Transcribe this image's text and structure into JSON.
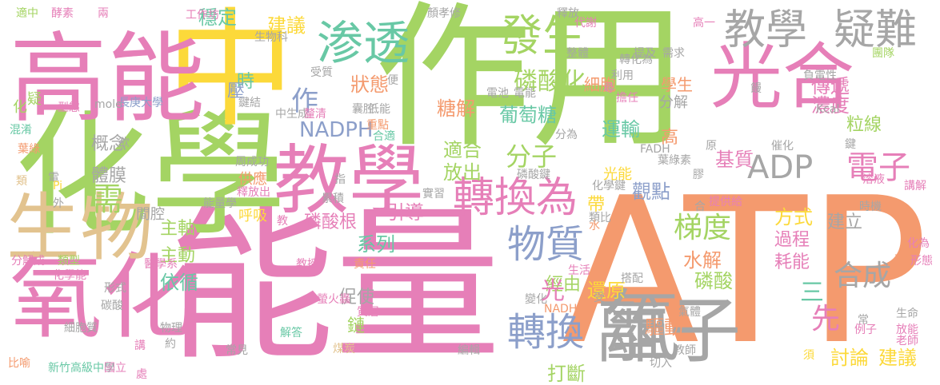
{
  "palette": {
    "pink": "#e67fb8",
    "green": "#a4d463",
    "gray": "#a6a6a6",
    "orange": "#f49a6e",
    "yellow": "#fcd93a",
    "teal": "#68c8a5",
    "blue": "#8c9fca",
    "tan": "#e2c38f"
  },
  "words": [
    {
      "text": "ATP",
      "color": "orange"
    },
    {
      "text": "能量",
      "color": "pink"
    },
    {
      "text": "作用",
      "color": "green"
    },
    {
      "text": "化學",
      "color": "green"
    },
    {
      "text": "中",
      "color": "yellow"
    },
    {
      "text": "高能",
      "color": "pink"
    },
    {
      "text": "氧化",
      "color": "pink"
    },
    {
      "text": "教學",
      "color": "pink"
    },
    {
      "text": "生物",
      "color": "tan"
    },
    {
      "text": "光合",
      "color": "pink"
    },
    {
      "text": "離子",
      "color": "gray"
    },
    {
      "text": "氫",
      "color": "gray"
    },
    {
      "text": "渗透",
      "color": "teal"
    },
    {
      "text": "發生",
      "color": "green"
    },
    {
      "text": "教學",
      "color": "gray"
    },
    {
      "text": "疑難",
      "color": "gray"
    },
    {
      "text": "轉換為",
      "color": "pink"
    },
    {
      "text": "轉換",
      "color": "blue"
    },
    {
      "text": "物質",
      "color": "blue"
    },
    {
      "text": "ADP",
      "color": "gray"
    },
    {
      "text": "電子",
      "color": "pink"
    },
    {
      "text": "梯度",
      "color": "green"
    },
    {
      "text": "合成",
      "color": "gray"
    },
    {
      "text": "分子",
      "color": "green"
    },
    {
      "text": "NADPH",
      "color": "blue"
    },
    {
      "text": "作",
      "color": "blue"
    },
    {
      "text": "磷酸化",
      "color": "green"
    },
    {
      "text": "先",
      "color": "pink"
    },
    {
      "text": "建議",
      "color": "yellow"
    },
    {
      "text": "穩定",
      "color": "teal"
    },
    {
      "text": "細胞",
      "color": "orange"
    },
    {
      "text": "學生",
      "color": "orange"
    },
    {
      "text": "狀態",
      "color": "orange"
    },
    {
      "text": "糖解",
      "color": "orange"
    },
    {
      "text": "葡萄糖",
      "color": "teal"
    },
    {
      "text": "傳遞",
      "color": "pink"
    },
    {
      "text": "濃度",
      "color": "pink"
    },
    {
      "text": "粒線",
      "color": "green"
    },
    {
      "text": "運輸",
      "color": "teal"
    },
    {
      "text": "適合",
      "color": "green"
    },
    {
      "text": "放出",
      "color": "green"
    },
    {
      "text": "基質",
      "color": "pink"
    },
    {
      "text": "觀點",
      "color": "blue"
    },
    {
      "text": "方式",
      "color": "yellow"
    },
    {
      "text": "建立",
      "color": "gray"
    },
    {
      "text": "過程",
      "color": "pink"
    },
    {
      "text": "耗能",
      "color": "pink"
    },
    {
      "text": "水解",
      "color": "orange"
    },
    {
      "text": "磷酸",
      "color": "green"
    },
    {
      "text": "討論",
      "color": "yellow"
    },
    {
      "text": "建議",
      "color": "yellow"
    },
    {
      "text": "驅動",
      "color": "orange"
    },
    {
      "text": "打斷",
      "color": "green"
    },
    {
      "text": "還原",
      "color": "yellow"
    },
    {
      "text": "經由",
      "color": "green"
    },
    {
      "text": "系列",
      "color": "teal"
    },
    {
      "text": "依循",
      "color": "teal"
    },
    {
      "text": "促使",
      "color": "gray"
    },
    {
      "text": "磷酸根",
      "color": "pink"
    },
    {
      "text": "引導",
      "color": "pink"
    },
    {
      "text": "主軸",
      "color": "green"
    },
    {
      "text": "主動",
      "color": "green"
    },
    {
      "text": "概念",
      "color": "gray"
    },
    {
      "text": "體膜",
      "color": "gray"
    },
    {
      "text": "需",
      "color": "green"
    },
    {
      "text": "間腔",
      "color": "gray"
    },
    {
      "text": "供應",
      "color": "orange"
    },
    {
      "text": "呼吸",
      "color": "yellow"
    },
    {
      "text": "光能",
      "color": "yellow"
    },
    {
      "text": "帶",
      "color": "yellow"
    },
    {
      "text": "高",
      "color": "orange"
    },
    {
      "text": "分解",
      "color": "gray"
    },
    {
      "text": "長庚大學",
      "color": "blue"
    },
    {
      "text": "醫學系",
      "color": "pink"
    },
    {
      "text": "新竹高級中學",
      "color": "teal"
    },
    {
      "text": "國立",
      "color": "pink"
    },
    {
      "text": "常見",
      "color": "gray"
    },
    {
      "text": "解答",
      "color": "teal"
    },
    {
      "text": "教授",
      "color": "pink"
    },
    {
      "text": "責任",
      "color": "orange"
    },
    {
      "text": "實習",
      "color": "gray"
    },
    {
      "text": "鏈",
      "color": "green"
    },
    {
      "text": "時",
      "color": "teal"
    },
    {
      "text": "壓",
      "color": "blue"
    },
    {
      "text": "鍵結",
      "color": "gray"
    },
    {
      "text": "工作坊",
      "color": "pink"
    },
    {
      "text": "生物科",
      "color": "gray"
    },
    {
      "text": "顏孝修",
      "color": "gray"
    },
    {
      "text": "釋放",
      "color": "gray"
    },
    {
      "text": "酵素",
      "color": "pink"
    },
    {
      "text": "兩",
      "color": "pink"
    },
    {
      "text": "適中",
      "color": "green"
    },
    {
      "text": "代謝",
      "color": "pink"
    },
    {
      "text": "高一",
      "color": "pink"
    },
    {
      "text": "團隊",
      "color": "green"
    },
    {
      "text": "負電性",
      "color": "gray"
    },
    {
      "text": "Kcal",
      "color": "gray"
    },
    {
      "text": "mole",
      "color": "gray"
    },
    {
      "text": "型態",
      "color": "pink"
    },
    {
      "text": "疑",
      "color": "green"
    },
    {
      "text": "化",
      "color": "green"
    },
    {
      "text": "混淆",
      "color": "teal"
    },
    {
      "text": "葉綠",
      "color": "orange"
    },
    {
      "text": "類",
      "color": "tan"
    },
    {
      "text": "電",
      "color": "gray"
    },
    {
      "text": "Pi",
      "color": "yellow"
    },
    {
      "text": "外",
      "color": "gray"
    },
    {
      "text": "分解成",
      "color": "pink"
    },
    {
      "text": "類型",
      "color": "green"
    },
    {
      "text": "化學能",
      "color": "pink"
    },
    {
      "text": "形式",
      "color": "gray"
    },
    {
      "text": "碳酸",
      "color": "gray"
    },
    {
      "text": "細胞質",
      "color": "gray"
    },
    {
      "text": "講",
      "color": "pink"
    },
    {
      "text": "比喻",
      "color": "orange"
    },
    {
      "text": "物理",
      "color": "gray"
    },
    {
      "text": "約",
      "color": "gray"
    },
    {
      "text": "處",
      "color": "pink"
    },
    {
      "text": "螢火蟲",
      "color": "pink"
    },
    {
      "text": "煤炭",
      "color": "tan"
    },
    {
      "text": "編輯",
      "color": "gray"
    },
    {
      "text": "教師",
      "color": "gray"
    },
    {
      "text": "切入",
      "color": "gray"
    },
    {
      "text": "生活",
      "color": "pink"
    },
    {
      "text": "搭配",
      "color": "gray"
    },
    {
      "text": "變化",
      "color": "gray"
    },
    {
      "text": "NADH",
      "color": "orange"
    },
    {
      "text": "受",
      "color": "gray"
    },
    {
      "text": "氣體",
      "color": "gray"
    },
    {
      "text": "生命",
      "color": "gray"
    },
    {
      "text": "放能",
      "color": "pink"
    },
    {
      "text": "老師",
      "color": "pink"
    },
    {
      "text": "常",
      "color": "gray"
    },
    {
      "text": "例子",
      "color": "pink"
    },
    {
      "text": "須",
      "color": "yellow"
    },
    {
      "text": "化為",
      "color": "pink"
    },
    {
      "text": "有何",
      "color": "orange"
    },
    {
      "text": "形態",
      "color": "pink"
    },
    {
      "text": "講解",
      "color": "pink"
    },
    {
      "text": "溶液",
      "color": "pink"
    },
    {
      "text": "時機",
      "color": "gray"
    },
    {
      "text": "提供給",
      "color": "pink"
    },
    {
      "text": "類比",
      "color": "gray"
    },
    {
      "text": "鍵",
      "color": "gray"
    },
    {
      "text": "催化",
      "color": "gray"
    },
    {
      "text": "葉綠素",
      "color": "gray"
    },
    {
      "text": "原",
      "color": "gray"
    },
    {
      "text": "合",
      "color": "gray"
    },
    {
      "text": "化學鍵",
      "color": "gray"
    },
    {
      "text": "磷酸鍵",
      "color": "gray"
    },
    {
      "text": "能量學",
      "color": "gray"
    },
    {
      "text": "釋放出",
      "color": "pink"
    },
    {
      "text": "周成功",
      "color": "gray"
    },
    {
      "text": "指",
      "color": "gray"
    },
    {
      "text": "累積",
      "color": "gray"
    },
    {
      "text": "教",
      "color": "pink"
    },
    {
      "text": "質層",
      "color": "pink"
    },
    {
      "text": "重點",
      "color": "orange"
    },
    {
      "text": "中生成",
      "color": "gray"
    },
    {
      "text": "釐清",
      "color": "pink"
    },
    {
      "text": "低能",
      "color": "gray"
    },
    {
      "text": "合適",
      "color": "teal"
    },
    {
      "text": "便",
      "color": "gray"
    },
    {
      "text": "受質",
      "color": "gray"
    },
    {
      "text": "電池",
      "color": "gray"
    },
    {
      "text": "電能",
      "color": "gray"
    },
    {
      "text": "分為",
      "color": "gray"
    },
    {
      "text": "尋",
      "color": "pink"
    },
    {
      "text": "擔任",
      "color": "pink"
    },
    {
      "text": "利用",
      "color": "gray"
    },
    {
      "text": "轉化為",
      "color": "gray"
    },
    {
      "text": "提及",
      "color": "gray"
    },
    {
      "text": "需求",
      "color": "gray"
    },
    {
      "text": "整體",
      "color": "gray"
    },
    {
      "text": "囊腔",
      "color": "gray"
    },
    {
      "text": "饅",
      "color": "gray"
    },
    {
      "text": "三",
      "color": "teal"
    },
    {
      "text": "光",
      "color": "pink"
    },
    {
      "text": "水",
      "color": "orange"
    },
    {
      "text": "FADH",
      "color": "gray"
    },
    {
      "text": "膠",
      "color": "gray"
    },
    {
      "text": "欲",
      "color": "gray"
    }
  ]
}
